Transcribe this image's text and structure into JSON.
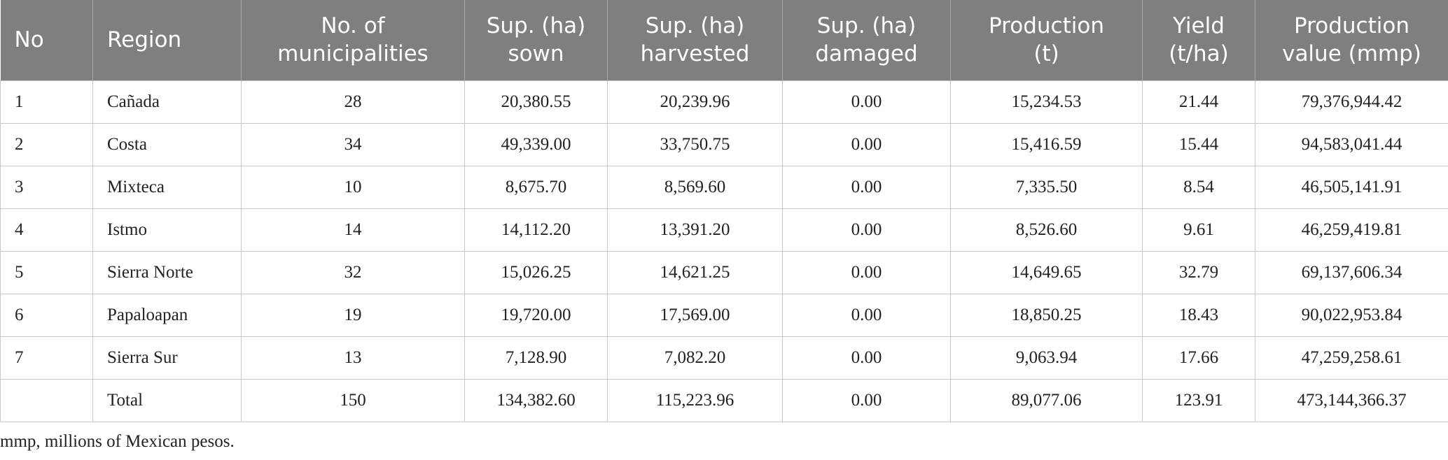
{
  "table": {
    "header": [
      [
        "No"
      ],
      [
        "Region"
      ],
      [
        "No. of",
        "municipalities"
      ],
      [
        "Sup. (ha)",
        "sown"
      ],
      [
        "Sup. (ha)",
        "harvested"
      ],
      [
        "Sup. (ha)",
        "damaged"
      ],
      [
        "Production",
        "(t)"
      ],
      [
        "Yield",
        "(t/ha)"
      ],
      [
        "Production",
        "value (mmp)"
      ]
    ],
    "rows": [
      [
        "1",
        "Cañada",
        "28",
        "20,380.55",
        "20,239.96",
        "0.00",
        "15,234.53",
        "21.44",
        "79,376,944.42"
      ],
      [
        "2",
        "Costa",
        "34",
        "49,339.00",
        "33,750.75",
        "0.00",
        "15,416.59",
        "15.44",
        "94,583,041.44"
      ],
      [
        "3",
        "Mixteca",
        "10",
        "8,675.70",
        "8,569.60",
        "0.00",
        "7,335.50",
        "8.54",
        "46,505,141.91"
      ],
      [
        "4",
        "Istmo",
        "14",
        "14,112.20",
        "13,391.20",
        "0.00",
        "8,526.60",
        "9.61",
        "46,259,419.81"
      ],
      [
        "5",
        "Sierra Norte",
        "32",
        "15,026.25",
        "14,621.25",
        "0.00",
        "14,649.65",
        "32.79",
        "69,137,606.34"
      ],
      [
        "6",
        "Papaloapan",
        "19",
        "19,720.00",
        "17,569.00",
        "0.00",
        "18,850.25",
        "18.43",
        "90,022,953.84"
      ],
      [
        "7",
        "Sierra Sur",
        "13",
        "7,128.90",
        "7,082.20",
        "0.00",
        "9,063.94",
        "17.66",
        "47,259,258.61"
      ],
      [
        null,
        "Total",
        "150",
        "134,382.60",
        "115,223.96",
        "0.00",
        "89,077.06",
        "123.91",
        "473,144,366.37"
      ]
    ],
    "footnote": "mmp, millions of Mexican pesos."
  }
}
